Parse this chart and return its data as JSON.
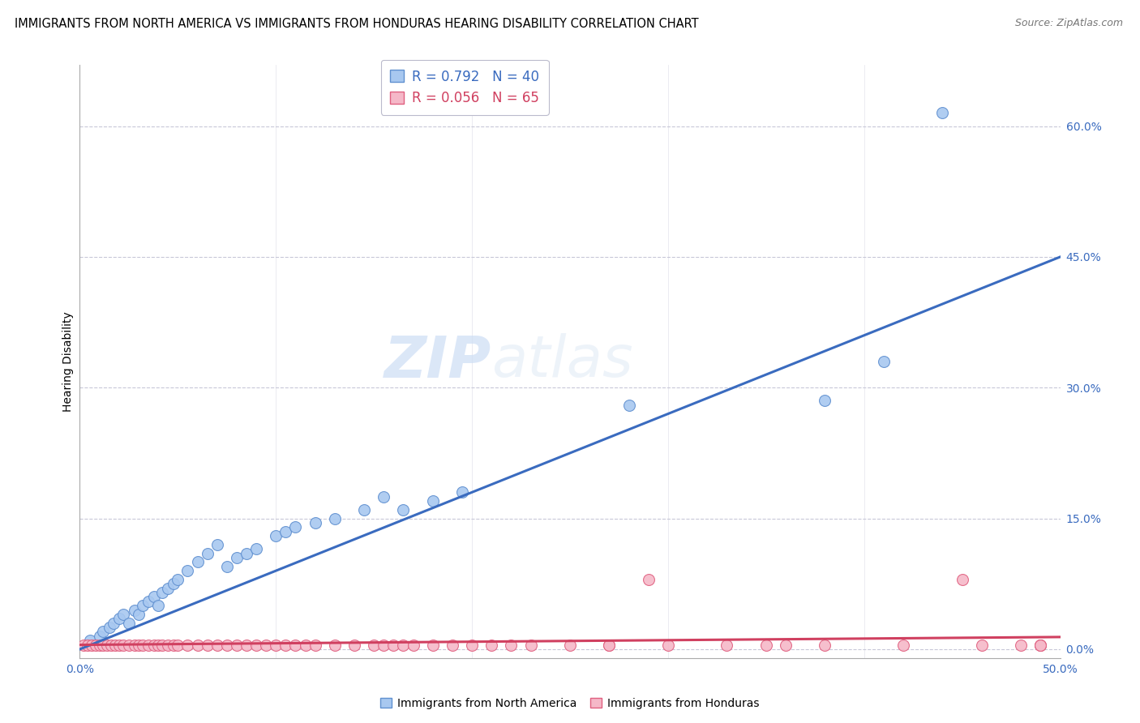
{
  "title": "IMMIGRANTS FROM NORTH AMERICA VS IMMIGRANTS FROM HONDURAS HEARING DISABILITY CORRELATION CHART",
  "source": "Source: ZipAtlas.com",
  "ylabel": "Hearing Disability",
  "y_tick_labels": [
    "0.0%",
    "15.0%",
    "30.0%",
    "45.0%",
    "60.0%"
  ],
  "y_tick_values": [
    0.0,
    0.15,
    0.3,
    0.45,
    0.6
  ],
  "xlim": [
    0.0,
    0.5
  ],
  "ylim": [
    -0.01,
    0.67
  ],
  "legend_label_blue": "Immigrants from North America",
  "legend_label_pink": "Immigrants from Honduras",
  "blue_R": "0.792",
  "blue_N": "40",
  "pink_R": "0.056",
  "pink_N": "65",
  "blue_color": "#a8c8f0",
  "pink_color": "#f5b8c8",
  "blue_edge_color": "#6090d0",
  "pink_edge_color": "#e06080",
  "blue_line_color": "#3a6bbf",
  "pink_line_color": "#d04060",
  "watermark_zip": "ZIP",
  "watermark_atlas": "atlas",
  "title_fontsize": 10.5,
  "axis_label_fontsize": 10,
  "tick_fontsize": 10,
  "legend_fontsize": 12,
  "blue_points_x": [
    0.005,
    0.01,
    0.012,
    0.015,
    0.017,
    0.02,
    0.022,
    0.025,
    0.028,
    0.03,
    0.032,
    0.035,
    0.038,
    0.04,
    0.042,
    0.045,
    0.048,
    0.05,
    0.055,
    0.06,
    0.065,
    0.07,
    0.075,
    0.08,
    0.085,
    0.09,
    0.1,
    0.105,
    0.11,
    0.12,
    0.13,
    0.145,
    0.155,
    0.165,
    0.18,
    0.195,
    0.28,
    0.38,
    0.41,
    0.44
  ],
  "blue_points_y": [
    0.01,
    0.015,
    0.02,
    0.025,
    0.03,
    0.035,
    0.04,
    0.03,
    0.045,
    0.04,
    0.05,
    0.055,
    0.06,
    0.05,
    0.065,
    0.07,
    0.075,
    0.08,
    0.09,
    0.1,
    0.11,
    0.12,
    0.095,
    0.105,
    0.11,
    0.115,
    0.13,
    0.135,
    0.14,
    0.145,
    0.15,
    0.16,
    0.175,
    0.16,
    0.17,
    0.18,
    0.28,
    0.285,
    0.33,
    0.615
  ],
  "pink_points_x": [
    0.002,
    0.004,
    0.006,
    0.008,
    0.01,
    0.012,
    0.014,
    0.016,
    0.018,
    0.02,
    0.022,
    0.025,
    0.028,
    0.03,
    0.032,
    0.035,
    0.038,
    0.04,
    0.042,
    0.045,
    0.048,
    0.05,
    0.055,
    0.06,
    0.065,
    0.07,
    0.075,
    0.08,
    0.085,
    0.09,
    0.095,
    0.1,
    0.105,
    0.11,
    0.115,
    0.12,
    0.13,
    0.14,
    0.15,
    0.155,
    0.16,
    0.165,
    0.17,
    0.18,
    0.19,
    0.2,
    0.21,
    0.22,
    0.23,
    0.25,
    0.27,
    0.3,
    0.33,
    0.36,
    0.38,
    0.42,
    0.45,
    0.46,
    0.48,
    0.49,
    0.27,
    0.35,
    0.49,
    0.49,
    0.29
  ],
  "pink_points_y": [
    0.005,
    0.005,
    0.005,
    0.005,
    0.005,
    0.005,
    0.005,
    0.005,
    0.005,
    0.005,
    0.005,
    0.005,
    0.005,
    0.005,
    0.005,
    0.005,
    0.005,
    0.005,
    0.005,
    0.005,
    0.005,
    0.005,
    0.005,
    0.005,
    0.005,
    0.005,
    0.005,
    0.005,
    0.005,
    0.005,
    0.005,
    0.005,
    0.005,
    0.005,
    0.005,
    0.005,
    0.005,
    0.005,
    0.005,
    0.005,
    0.005,
    0.005,
    0.005,
    0.005,
    0.005,
    0.005,
    0.005,
    0.005,
    0.005,
    0.005,
    0.005,
    0.005,
    0.005,
    0.005,
    0.005,
    0.005,
    0.08,
    0.005,
    0.005,
    0.005,
    0.005,
    0.005,
    0.005,
    0.005,
    0.08
  ],
  "marker_size": 100
}
